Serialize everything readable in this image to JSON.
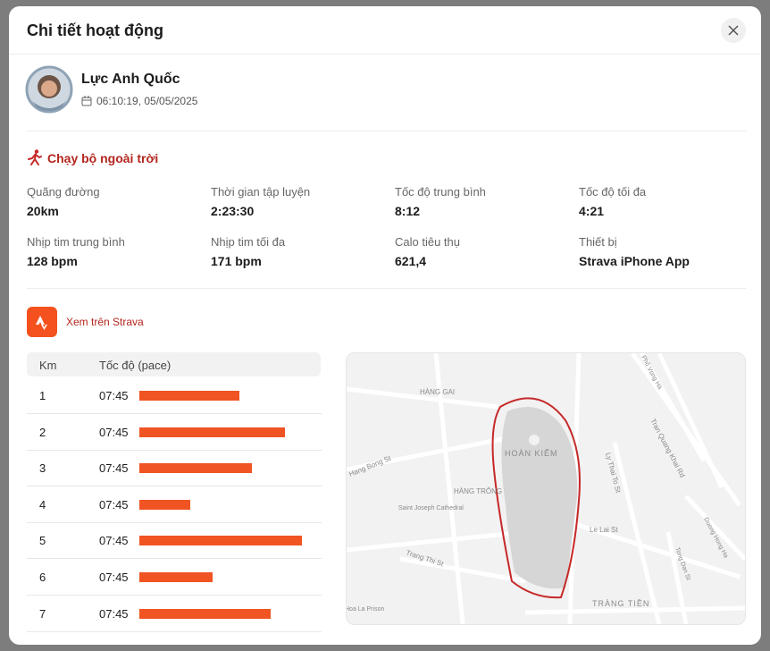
{
  "header": {
    "title": "Chi tiết hoạt động"
  },
  "user": {
    "name": "Lực Anh Quốc",
    "datetime": "06:10:19, 05/05/2025"
  },
  "activity": {
    "type": "Chạy bộ ngoài trời",
    "stats": [
      {
        "label": "Quãng đường",
        "value": "20km"
      },
      {
        "label": "Thời gian tập luyện",
        "value": "2:23:30"
      },
      {
        "label": "Tốc độ trung bình",
        "value": "8:12"
      },
      {
        "label": "Tốc độ tối đa",
        "value": "4:21"
      },
      {
        "label": "Nhịp tim trung bình",
        "value": "128 bpm"
      },
      {
        "label": "Nhịp tim tối đa",
        "value": "171 bpm"
      },
      {
        "label": "Calo tiêu thụ",
        "value": "621,4"
      },
      {
        "label": "Thiết bị",
        "value": "Strava iPhone App"
      }
    ]
  },
  "strava_link": "Xem trên Strava",
  "table": {
    "columns": [
      "Km",
      "Tốc độ (pace)"
    ],
    "rows": [
      {
        "km": "1",
        "pace": "07:45",
        "bar": 55
      },
      {
        "km": "2",
        "pace": "07:45",
        "bar": 80
      },
      {
        "km": "3",
        "pace": "07:45",
        "bar": 62
      },
      {
        "km": "4",
        "pace": "07:45",
        "bar": 28
      },
      {
        "km": "5",
        "pace": "07:45",
        "bar": 89
      },
      {
        "km": "6",
        "pace": "07:45",
        "bar": 40
      },
      {
        "km": "7",
        "pace": "07:45",
        "bar": 72
      }
    ]
  },
  "map": {
    "labels": [
      "HÀNG GAI",
      "HOÀN KIẾM",
      "HÀNG TRỐNG",
      "Saint Joseph Cathedral",
      "Hang Bong St",
      "Trang Thi St",
      "Le Lai St",
      "Ly Thai To St",
      "Tran Quang Khai Rd",
      "Phố Vọng Hà",
      "Duong Hong Ha",
      "Tong Dan St",
      "TRÀNG TIỀN",
      "Hoa La Prison"
    ]
  }
}
